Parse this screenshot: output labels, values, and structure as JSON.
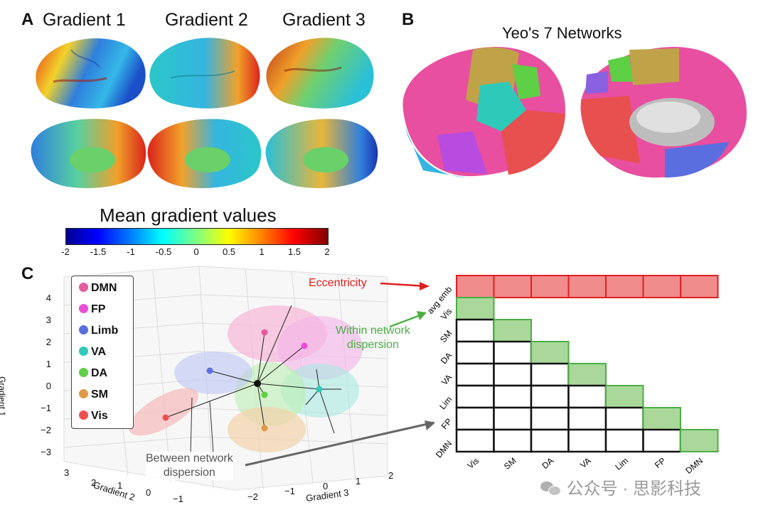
{
  "panels": {
    "a": "A",
    "b": "B",
    "c": "C"
  },
  "panel_a": {
    "titles": [
      "Gradient 1",
      "Gradient 2",
      "Gradient 3"
    ],
    "colorbar": {
      "title": "Mean gradient values",
      "ticks": [
        "-2",
        "-1.5",
        "-1",
        "-0.5",
        "0",
        "0.5",
        "1",
        "1.5",
        "2"
      ]
    }
  },
  "panel_b": {
    "title": "Yeo's 7 Networks"
  },
  "panel_c": {
    "legend": [
      {
        "label": "DMN",
        "color": "#e75a9e"
      },
      {
        "label": "FP",
        "color": "#e94fd6"
      },
      {
        "label": "Limb",
        "color": "#5a6ee0"
      },
      {
        "label": "VA",
        "color": "#2fc9b9"
      },
      {
        "label": "DA",
        "color": "#5fcf45"
      },
      {
        "label": "SM",
        "color": "#e09a45"
      },
      {
        "label": "Vis",
        "color": "#ef4f4f"
      }
    ],
    "axes": {
      "gradient1_label": "Gradient 1",
      "gradient2_label": "Gradient 2",
      "gradient3_label": "Gradient 3",
      "gradient1_ticks": [
        "4",
        "3",
        "2",
        "1",
        "0",
        "−1",
        "−2",
        "−3"
      ],
      "gradient2_ticks": [
        "3",
        "2",
        "1",
        "0",
        "−1"
      ],
      "gradient3_ticks": [
        "−2",
        "−1",
        "0",
        "1",
        "2"
      ]
    },
    "annotations": {
      "eccentricity": "Eccentricity",
      "within_line1": "Within network",
      "within_line2": "dispersion",
      "between_line1": "Between network",
      "between_line2": "dispersion"
    },
    "matrix": {
      "row_labels": [
        "avg emb",
        "Vis",
        "SM",
        "DA",
        "VA",
        "Lim",
        "FP",
        "DMN"
      ],
      "col_labels": [
        "Vis",
        "SM",
        "DA",
        "VA",
        "Lim",
        "FP",
        "DMN"
      ]
    }
  },
  "watermark": "公众号 · 思影科技"
}
